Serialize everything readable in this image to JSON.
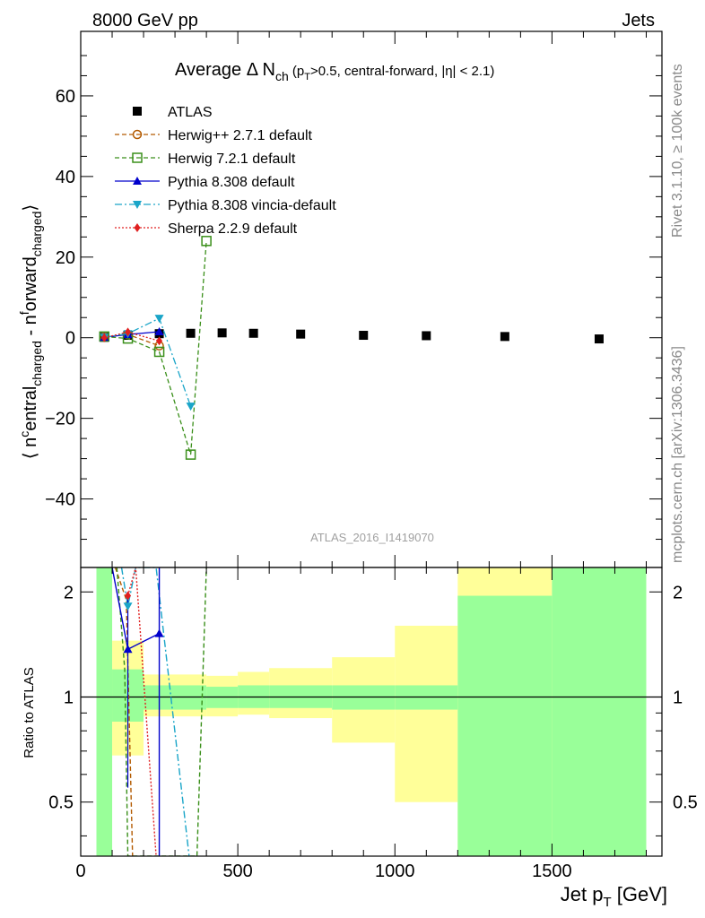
{
  "header": {
    "left": "8000 GeV pp",
    "right": "Jets"
  },
  "side_labels": {
    "rivet": "Rivet 3.1.10, ≥ 100k events",
    "mcplots": "mcplots.cern.ch [arXiv:1306.3436]"
  },
  "watermark": "ATLAS_2016_I1419070",
  "chart_data": [
    {
      "type": "scatter",
      "title": "Average Δ N_ch (p_T>0.5, central-forward, |η| < 2.1)",
      "ylabel": "⟨ n^central_charged - n^forward_charged ⟩",
      "xlim": [
        0,
        1850
      ],
      "ylim": [
        -57,
        76
      ],
      "yticks": [
        -40,
        -20,
        0,
        20,
        40,
        60
      ],
      "xticks": [
        0,
        500,
        1000,
        1500
      ],
      "legend_position": "top-left",
      "series": [
        {
          "name": "ATLAS",
          "color": "#000000",
          "marker": "square-filled",
          "line": "none",
          "x": [
            75,
            150,
            250,
            350,
            450,
            550,
            700,
            900,
            1100,
            1350,
            1650
          ],
          "y": [
            0.1,
            0.6,
            1.0,
            1.1,
            1.2,
            1.1,
            0.9,
            0.6,
            0.5,
            0.3,
            -0.3
          ]
        },
        {
          "name": "Herwig++ 2.7.1 default",
          "color": "#b35a00",
          "marker": "circle-open",
          "line": "dashed",
          "x": [
            75,
            150,
            250
          ],
          "y": [
            0.1,
            0.8,
            -2.0
          ]
        },
        {
          "name": "Herwig 7.2.1 default",
          "color": "#3a8f1a",
          "marker": "square-open",
          "line": "dashed",
          "x": [
            75,
            150,
            250,
            350,
            400
          ],
          "y": [
            0.3,
            -0.2,
            -3.5,
            -29.0,
            24.0
          ]
        },
        {
          "name": "Pythia 8.308 default",
          "color": "#0000cc",
          "marker": "triangle-up",
          "line": "solid",
          "x": [
            75,
            150,
            250
          ],
          "y": [
            0.1,
            0.8,
            1.5
          ]
        },
        {
          "name": "Pythia 8.308 vincia-default",
          "color": "#1aa5c8",
          "marker": "triangle-down",
          "line": "dashdot",
          "x": [
            75,
            150,
            250,
            350
          ],
          "y": [
            0.1,
            1.0,
            4.8,
            -17.0
          ]
        },
        {
          "name": "Sherpa 2.2.9 default",
          "color": "#e02020",
          "marker": "diamond",
          "line": "dotted",
          "x": [
            75,
            150,
            250
          ],
          "y": [
            0.0,
            1.4,
            -0.8
          ]
        }
      ]
    },
    {
      "type": "line",
      "ylabel": "Ratio to ATLAS",
      "xlabel": "Jet p_T [GeV]",
      "xlim": [
        0,
        1850
      ],
      "ylim": [
        0.35,
        2.35
      ],
      "yticks": [
        0.5,
        1,
        2
      ],
      "bins": [
        {
          "x0": 50,
          "x1": 100,
          "green": [
            0.35,
            2.35
          ],
          "yellow": [
            0.35,
            2.35
          ]
        },
        {
          "x0": 100,
          "x1": 200,
          "green": [
            0.85,
            1.2
          ],
          "yellow": [
            0.68,
            1.45
          ]
        },
        {
          "x0": 200,
          "x1": 400,
          "green": [
            0.92,
            1.08
          ],
          "yellow": [
            0.88,
            1.16
          ]
        },
        {
          "x0": 400,
          "x1": 500,
          "green": [
            0.93,
            1.07
          ],
          "yellow": [
            0.88,
            1.15
          ]
        },
        {
          "x0": 500,
          "x1": 600,
          "green": [
            0.93,
            1.08
          ],
          "yellow": [
            0.89,
            1.18
          ]
        },
        {
          "x0": 600,
          "x1": 800,
          "green": [
            0.93,
            1.08
          ],
          "yellow": [
            0.87,
            1.21
          ]
        },
        {
          "x0": 800,
          "x1": 1000,
          "green": [
            0.92,
            1.08
          ],
          "yellow": [
            0.74,
            1.3
          ]
        },
        {
          "x0": 1000,
          "x1": 1200,
          "green": [
            0.92,
            1.08
          ],
          "yellow": [
            0.5,
            1.6
          ]
        },
        {
          "x0": 1200,
          "x1": 1500,
          "green": [
            0.35,
            1.95
          ],
          "yellow": [
            0.35,
            2.35
          ]
        },
        {
          "x0": 1500,
          "x1": 1800,
          "green": [
            0.35,
            2.35
          ],
          "yellow": [
            0.35,
            2.35
          ]
        }
      ],
      "series": [
        {
          "name": "Herwig++ 2.7.1 default",
          "color": "#b35a00",
          "line": "dashed",
          "x": [
            110,
            145,
            165
          ],
          "y": [
            2.35,
            1.9,
            0.35
          ]
        },
        {
          "name": "Herwig 7.2.1 default",
          "color": "#3a8f1a",
          "line": "dashed",
          "x": [
            115,
            140,
            150,
            370,
            400
          ],
          "y": [
            2.35,
            1.2,
            0.35,
            0.35,
            2.35
          ]
        },
        {
          "name": "Pythia 8.308 default",
          "color": "#0000cc",
          "line": "solid",
          "x": [
            100,
            150,
            250
          ],
          "y": [
            2.35,
            1.37,
            1.52
          ]
        },
        {
          "name": "Pythia 8.308 vincia-default",
          "color": "#1aa5c8",
          "line": "dashdot",
          "x": [
            130,
            150,
            175,
            240,
            345
          ],
          "y": [
            2.35,
            1.82,
            2.35,
            2.35,
            0.35
          ]
        },
        {
          "name": "Sherpa 2.2.9 default",
          "color": "#e02020",
          "line": "dotted",
          "x": [
            150,
            175,
            240
          ],
          "y": [
            1.95,
            2.35,
            0.35
          ]
        }
      ],
      "markers": [
        {
          "color": "#0000cc",
          "shape": "triangle-up",
          "x": 150,
          "y": 1.37
        },
        {
          "color": "#0000cc",
          "shape": "triangle-up",
          "x": 250,
          "y": 1.52
        },
        {
          "color": "#1aa5c8",
          "shape": "triangle-down",
          "x": 150,
          "y": 1.82
        },
        {
          "color": "#e02020",
          "shape": "diamond",
          "x": 150,
          "y": 1.95
        }
      ]
    }
  ]
}
